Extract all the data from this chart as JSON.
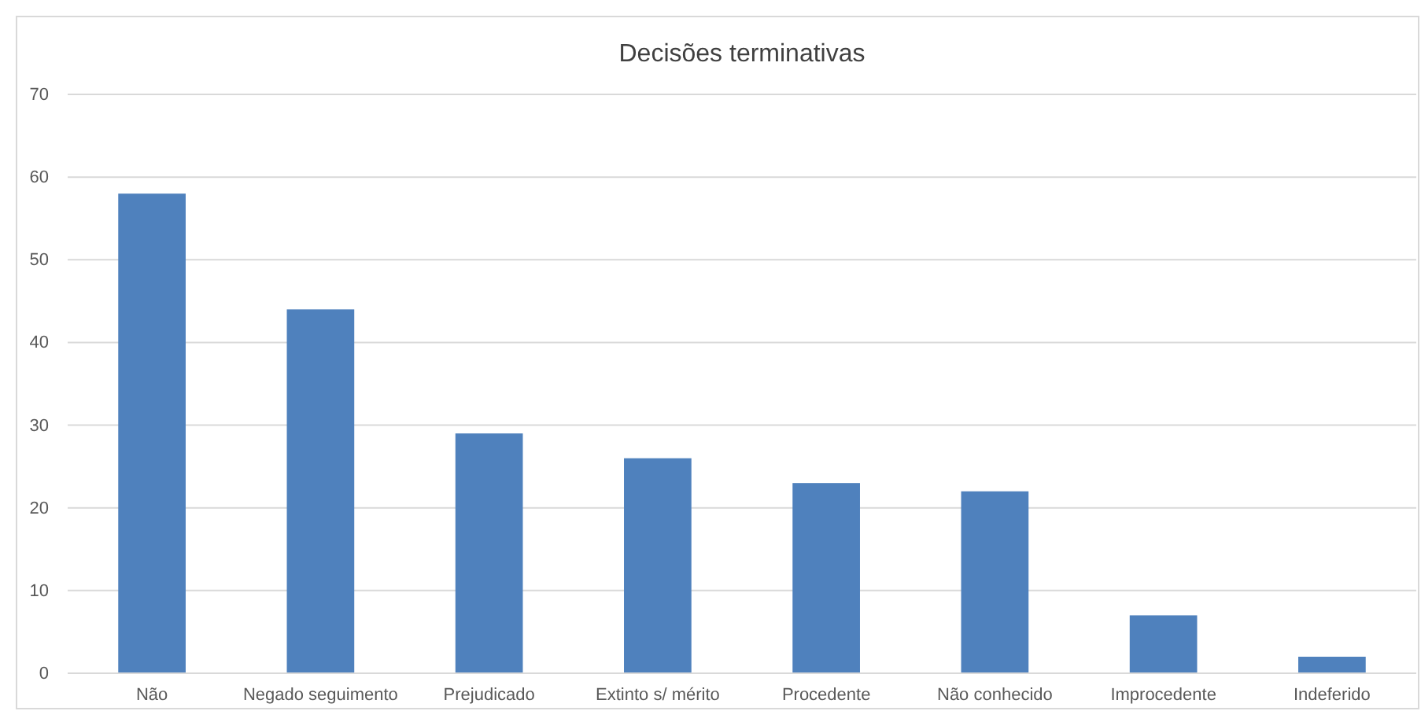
{
  "chart_data": {
    "type": "bar",
    "title": "Decisões terminativas",
    "categories": [
      "Não",
      "Negado seguimento",
      "Prejudicado",
      "Extinto s/ mérito",
      "Procedente",
      "Não conhecido",
      "Improcedente",
      "Indeferido"
    ],
    "values": [
      58,
      44,
      29,
      26,
      23,
      22,
      7,
      2
    ],
    "color": "#4f81bd",
    "ylim": [
      0,
      70
    ],
    "yticks": [
      0,
      10,
      20,
      30,
      40,
      50,
      60,
      70
    ],
    "grid": "y"
  }
}
